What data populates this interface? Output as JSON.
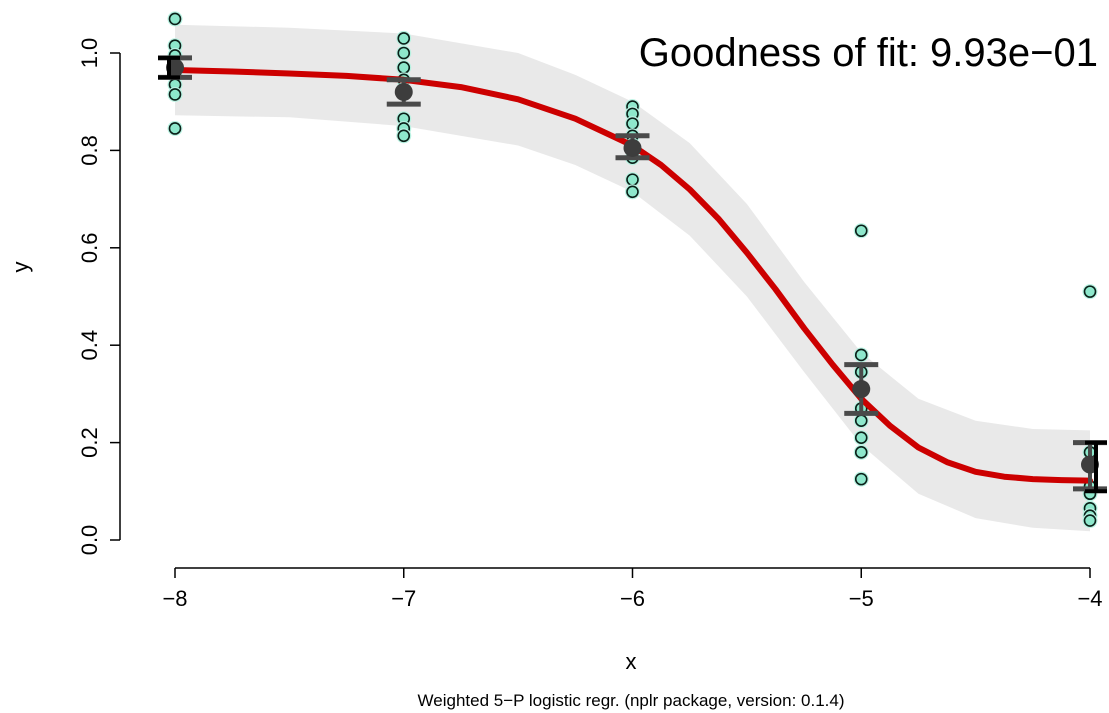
{
  "chart_data": {
    "type": "scatter",
    "xlabel": "x",
    "ylabel": "y",
    "subtitle": "Weighted 5−P logistic regr. (nplr package, version: 0.1.4)",
    "annotation": "Goodness of fit: 9.93e−01",
    "x_ticks": [
      -8,
      -7,
      -6,
      -5,
      -4
    ],
    "y_ticks": [
      0.0,
      0.2,
      0.4,
      0.6,
      0.8,
      1.0
    ],
    "x_tick_labels": [
      "−8",
      "−7",
      "−6",
      "−5",
      "−4"
    ],
    "y_tick_labels": [
      "0.0",
      "0.2",
      "0.4",
      "0.6",
      "0.8",
      "1.0"
    ],
    "xlim": [
      -8.05,
      -3.95
    ],
    "ylim": [
      -0.01,
      1.09
    ],
    "grid": false,
    "colors": {
      "point_fill": "#8ee8cc",
      "point_ring": "#b9f2e2",
      "point_stroke": "#0a1f18",
      "fit_curve": "#cc0000",
      "conf_band": "#e9e9e9",
      "mean": "#3d3d3d",
      "error_bar_fit": "#4a4a4a",
      "error_bar_data": "#000000"
    },
    "points": [
      {
        "x": -8,
        "y": 1.07
      },
      {
        "x": -8,
        "y": 1.015
      },
      {
        "x": -8,
        "y": 0.995
      },
      {
        "x": -8,
        "y": 0.975
      },
      {
        "x": -8,
        "y": 0.955
      },
      {
        "x": -8,
        "y": 0.935
      },
      {
        "x": -8,
        "y": 0.915
      },
      {
        "x": -8,
        "y": 0.845
      },
      {
        "x": -7,
        "y": 1.03
      },
      {
        "x": -7,
        "y": 1.0
      },
      {
        "x": -7,
        "y": 0.97
      },
      {
        "x": -7,
        "y": 0.945
      },
      {
        "x": -7,
        "y": 0.925
      },
      {
        "x": -7,
        "y": 0.865
      },
      {
        "x": -7,
        "y": 0.845
      },
      {
        "x": -7,
        "y": 0.83
      },
      {
        "x": -6,
        "y": 0.89
      },
      {
        "x": -6,
        "y": 0.875
      },
      {
        "x": -6,
        "y": 0.855
      },
      {
        "x": -6,
        "y": 0.83
      },
      {
        "x": -6,
        "y": 0.81
      },
      {
        "x": -6,
        "y": 0.785
      },
      {
        "x": -6,
        "y": 0.74
      },
      {
        "x": -6,
        "y": 0.715
      },
      {
        "x": -5,
        "y": 0.635
      },
      {
        "x": -5,
        "y": 0.38
      },
      {
        "x": -5,
        "y": 0.345
      },
      {
        "x": -5,
        "y": 0.27
      },
      {
        "x": -5,
        "y": 0.245
      },
      {
        "x": -5,
        "y": 0.21
      },
      {
        "x": -5,
        "y": 0.18
      },
      {
        "x": -5,
        "y": 0.125
      },
      {
        "x": -4,
        "y": 0.51
      },
      {
        "x": -4,
        "y": 0.18
      },
      {
        "x": -4,
        "y": 0.155
      },
      {
        "x": -4,
        "y": 0.11
      },
      {
        "x": -4,
        "y": 0.095
      },
      {
        "x": -4,
        "y": 0.065
      },
      {
        "x": -4,
        "y": 0.05
      },
      {
        "x": -4,
        "y": 0.04
      }
    ],
    "means": [
      {
        "x": -8,
        "y": 0.97
      },
      {
        "x": -7,
        "y": 0.92
      },
      {
        "x": -6,
        "y": 0.805
      },
      {
        "x": -5,
        "y": 0.31
      },
      {
        "x": -4,
        "y": 0.155
      }
    ],
    "fit_error_bars": [
      {
        "x": -8,
        "low": 0.95,
        "high": 0.99
      },
      {
        "x": -7,
        "low": 0.895,
        "high": 0.945
      },
      {
        "x": -6,
        "low": 0.785,
        "high": 0.83
      },
      {
        "x": -5,
        "low": 0.26,
        "high": 0.36
      },
      {
        "x": -4,
        "low": 0.105,
        "high": 0.2
      }
    ],
    "data_error_bars": [
      {
        "x": -8,
        "low": 0.95,
        "high": 0.99
      },
      {
        "x": -4,
        "low": 0.1,
        "high": 0.2
      }
    ],
    "fit_curve": [
      {
        "x": -8.0,
        "y": 0.965
      },
      {
        "x": -7.75,
        "y": 0.962
      },
      {
        "x": -7.5,
        "y": 0.958
      },
      {
        "x": -7.25,
        "y": 0.953
      },
      {
        "x": -7.0,
        "y": 0.945
      },
      {
        "x": -6.75,
        "y": 0.93
      },
      {
        "x": -6.5,
        "y": 0.905
      },
      {
        "x": -6.25,
        "y": 0.865
      },
      {
        "x": -6.0,
        "y": 0.81
      },
      {
        "x": -5.875,
        "y": 0.77
      },
      {
        "x": -5.75,
        "y": 0.72
      },
      {
        "x": -5.625,
        "y": 0.66
      },
      {
        "x": -5.5,
        "y": 0.59
      },
      {
        "x": -5.375,
        "y": 0.515
      },
      {
        "x": -5.25,
        "y": 0.435
      },
      {
        "x": -5.125,
        "y": 0.36
      },
      {
        "x": -5.0,
        "y": 0.29
      },
      {
        "x": -4.875,
        "y": 0.235
      },
      {
        "x": -4.75,
        "y": 0.19
      },
      {
        "x": -4.625,
        "y": 0.16
      },
      {
        "x": -4.5,
        "y": 0.14
      },
      {
        "x": -4.375,
        "y": 0.13
      },
      {
        "x": -4.25,
        "y": 0.125
      },
      {
        "x": -4.125,
        "y": 0.123
      },
      {
        "x": -4.0,
        "y": 0.122
      }
    ],
    "conf_band": [
      {
        "x": -8.0,
        "low": 0.872,
        "high": 1.058
      },
      {
        "x": -7.5,
        "low": 0.868,
        "high": 1.052
      },
      {
        "x": -7.0,
        "low": 0.85,
        "high": 1.04
      },
      {
        "x": -6.5,
        "low": 0.81,
        "high": 1.0
      },
      {
        "x": -6.25,
        "low": 0.77,
        "high": 0.955
      },
      {
        "x": -6.0,
        "low": 0.715,
        "high": 0.9
      },
      {
        "x": -5.75,
        "low": 0.625,
        "high": 0.815
      },
      {
        "x": -5.5,
        "low": 0.5,
        "high": 0.69
      },
      {
        "x": -5.25,
        "low": 0.345,
        "high": 0.53
      },
      {
        "x": -5.0,
        "low": 0.195,
        "high": 0.385
      },
      {
        "x": -4.75,
        "low": 0.095,
        "high": 0.29
      },
      {
        "x": -4.5,
        "low": 0.045,
        "high": 0.245
      },
      {
        "x": -4.25,
        "low": 0.025,
        "high": 0.228
      },
      {
        "x": -4.0,
        "low": 0.018,
        "high": 0.225
      }
    ]
  }
}
